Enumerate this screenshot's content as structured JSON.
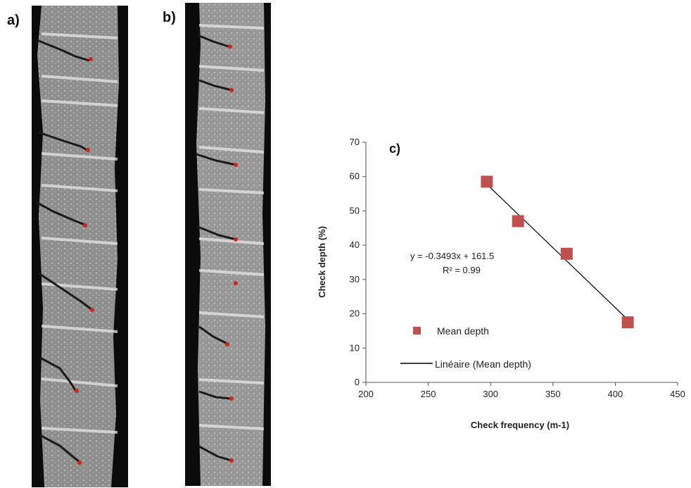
{
  "panels": {
    "a_label": "a)",
    "b_label": "b)"
  },
  "chart_data": {
    "type": "scatter",
    "panel_label": "c)",
    "xlabel": "Check frequency (m-1)",
    "ylabel": "Check depth (%)",
    "xlim": [
      200,
      450
    ],
    "ylim": [
      0,
      70
    ],
    "xticks": [
      "200",
      "250",
      "300",
      "350",
      "400",
      "450"
    ],
    "yticks": [
      "0",
      "10",
      "20",
      "30",
      "40",
      "50",
      "60",
      "70"
    ],
    "grid": false,
    "legend_position": "bottom-left",
    "series": [
      {
        "name": "Mean depth",
        "marker": "square",
        "color": "#c0504d",
        "x": [
          297,
          322,
          361,
          410
        ],
        "y": [
          58.5,
          47,
          37.5,
          17.5
        ]
      }
    ],
    "trendline": {
      "name": "Linéaire (Mean depth)",
      "slope": -0.3493,
      "intercept": 161.5,
      "x_range": [
        297,
        410
      ],
      "color": "#000000",
      "equation": "y = -0.3493x + 161.5",
      "r2_label": "R² = 0.99"
    }
  }
}
